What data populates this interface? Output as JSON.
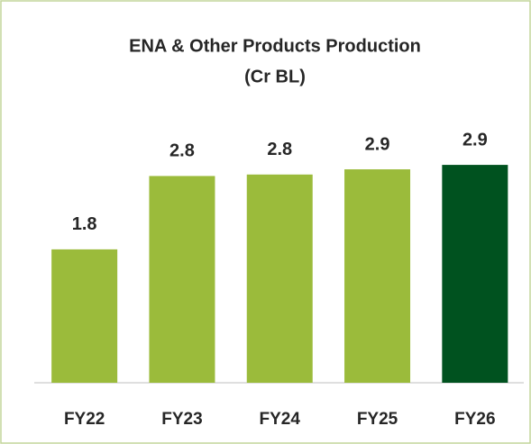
{
  "chart_data": {
    "type": "bar",
    "title": "ENA & Other Products Production",
    "subtitle": "(Cr BL)",
    "categories": [
      "FY22",
      "FY23",
      "FY24",
      "FY25",
      "FY26"
    ],
    "values": [
      1.8,
      2.79,
      2.81,
      2.88,
      2.94
    ],
    "value_labels": [
      "1.8",
      "2.8",
      "2.8",
      "2.9",
      "2.9"
    ],
    "colors": [
      "#9bbb3b",
      "#9bbb3b",
      "#9bbb3b",
      "#9bbb3b",
      "#00521f"
    ],
    "ylim": [
      0,
      3.5
    ]
  }
}
